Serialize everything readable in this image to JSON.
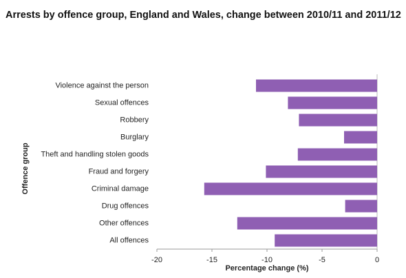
{
  "chart_data": {
    "type": "hbar",
    "title": "Arrests by offence group, England and Wales, change between 2010/11 and 2011/12",
    "categories": [
      "Violence against the person",
      "Sexual offences",
      "Robbery",
      "Burglary",
      "Theft and handling stolen goods",
      "Fraud and forgery",
      "Criminal damage",
      "Drug offences",
      "Other offences",
      "All offences"
    ],
    "values": [
      -11.0,
      -8.1,
      -7.1,
      -3.0,
      -7.2,
      -10.1,
      -15.7,
      -2.9,
      -12.7,
      -9.3
    ],
    "color": "#8f5fb3",
    "xlim": [
      -20,
      0
    ],
    "xticks": [
      -20,
      -15,
      -10,
      -5,
      0
    ],
    "x_label": "Percentage change (%)",
    "y_label": "Offence group"
  }
}
